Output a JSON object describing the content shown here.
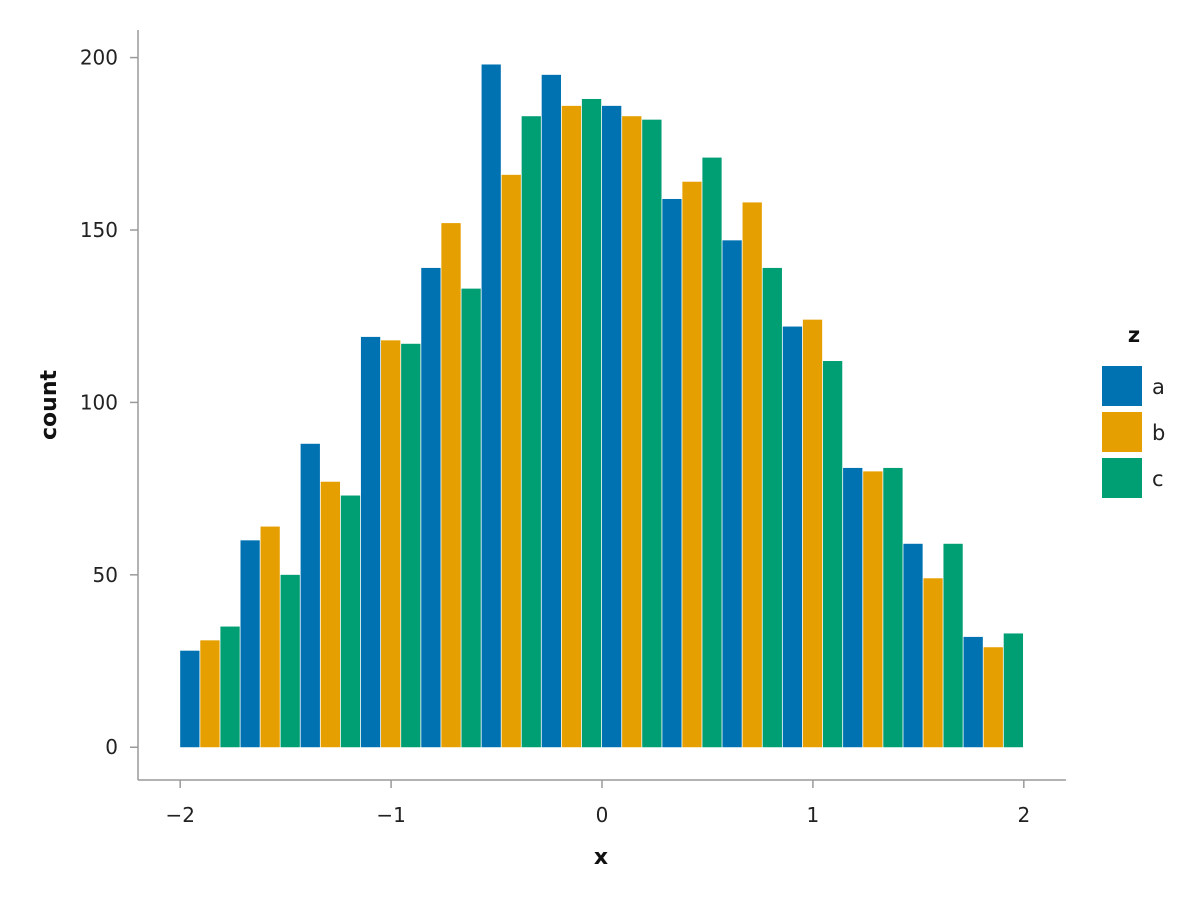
{
  "chart_data": {
    "type": "bar",
    "xlabel": "x",
    "ylabel": "count",
    "xlim": [
      -2.2,
      2.2
    ],
    "ylim": [
      -9.5,
      208
    ],
    "x_ticks": [
      -2,
      -1,
      0,
      1,
      2
    ],
    "x_tick_labels": [
      "−2",
      "−1",
      "0",
      "1",
      "2"
    ],
    "y_ticks": [
      0,
      50,
      100,
      150,
      200
    ],
    "y_tick_labels": [
      "0",
      "50",
      "100",
      "150",
      "200"
    ],
    "grid": false,
    "legend": {
      "title": "z",
      "placement": "right",
      "entries": [
        {
          "label": "a",
          "color": "#0072B2"
        },
        {
          "label": "b",
          "color": "#E69F00"
        },
        {
          "label": "c",
          "color": "#009E73"
        }
      ]
    },
    "bin_edges": [
      -2.0,
      -1.714,
      -1.429,
      -1.143,
      -0.857,
      -0.571,
      -0.286,
      0.0,
      0.286,
      0.571,
      0.857,
      1.143,
      1.429,
      1.714,
      2.0
    ],
    "series": [
      {
        "name": "a",
        "color": "#0072B2",
        "values": [
          28,
          60,
          88,
          119,
          139,
          198,
          195,
          186,
          159,
          147,
          122,
          81,
          59,
          32
        ]
      },
      {
        "name": "b",
        "color": "#E69F00",
        "values": [
          31,
          64,
          77,
          118,
          152,
          166,
          186,
          183,
          164,
          158,
          124,
          80,
          49,
          29
        ]
      },
      {
        "name": "c",
        "color": "#009E73",
        "values": [
          35,
          50,
          73,
          117,
          133,
          183,
          188,
          182,
          171,
          139,
          112,
          81,
          59,
          33
        ]
      }
    ]
  }
}
